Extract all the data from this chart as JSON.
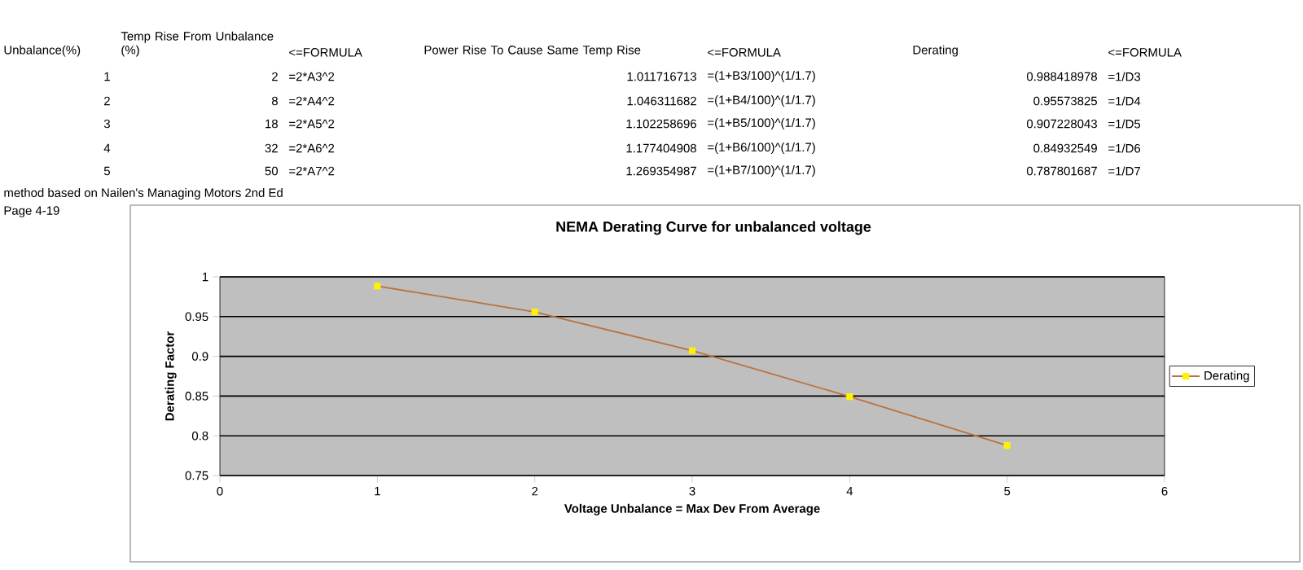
{
  "chart_data": {
    "type": "line",
    "title": "NEMA Derating Curve for unbalanced voltage",
    "xlabel": "Voltage Unbalance = Max Dev From Average",
    "ylabel": "Derating Factor",
    "x": [
      1,
      2,
      3,
      4,
      5
    ],
    "series": [
      {
        "name": "Derating",
        "color": "#b8733f",
        "values": [
          0.988418978,
          0.95573825,
          0.907228043,
          0.84932549,
          0.787801687
        ]
      }
    ],
    "xlim": [
      0,
      6
    ],
    "xticks": [
      0,
      1,
      2,
      3,
      4,
      5,
      6
    ],
    "ylim": [
      0.75,
      1
    ],
    "yticks": [
      0.75,
      0.8,
      0.85,
      0.9,
      0.95,
      1
    ],
    "grid": "y",
    "legend": "right",
    "marker": "square",
    "line_style": "solid",
    "annotations": [
      "Unbalance(%)",
      "Temp Rise From Unbalance (%)",
      "<=FORMULA",
      "Power Rise To Cause Same Temp Rise",
      "<=FORMULA",
      "Derating",
      "<=FORMULA",
      "1",
      "2",
      "=2*A3^2",
      "1.011716713",
      "=(1+B3/100)^(1/1.7)",
      "0.988418978",
      "=1/D3",
      "2",
      "8",
      "=2*A4^2",
      "1.046311682",
      "=(1+B4/100)^(1/1.7)",
      "0.95573825",
      "=1/D4",
      "3",
      "18",
      "=2*A5^2",
      "1.102258696",
      "=(1+B5/100)^(1/1.7)",
      "0.907228043",
      "=1/D5",
      "4",
      "32",
      "=2*A6^2",
      "1.177404908",
      "=(1+B6/100)^(1/1.7)",
      "0.84932549",
      "=1/D6",
      "5",
      "50",
      "=2*A7^2",
      "1.269354987",
      "=(1+B7/100)^(1/1.7)",
      "0.787801687",
      "=1/D7",
      "method based on Nailen's Managing Motors 2nd Ed",
      "Page 4-19"
    ]
  }
}
